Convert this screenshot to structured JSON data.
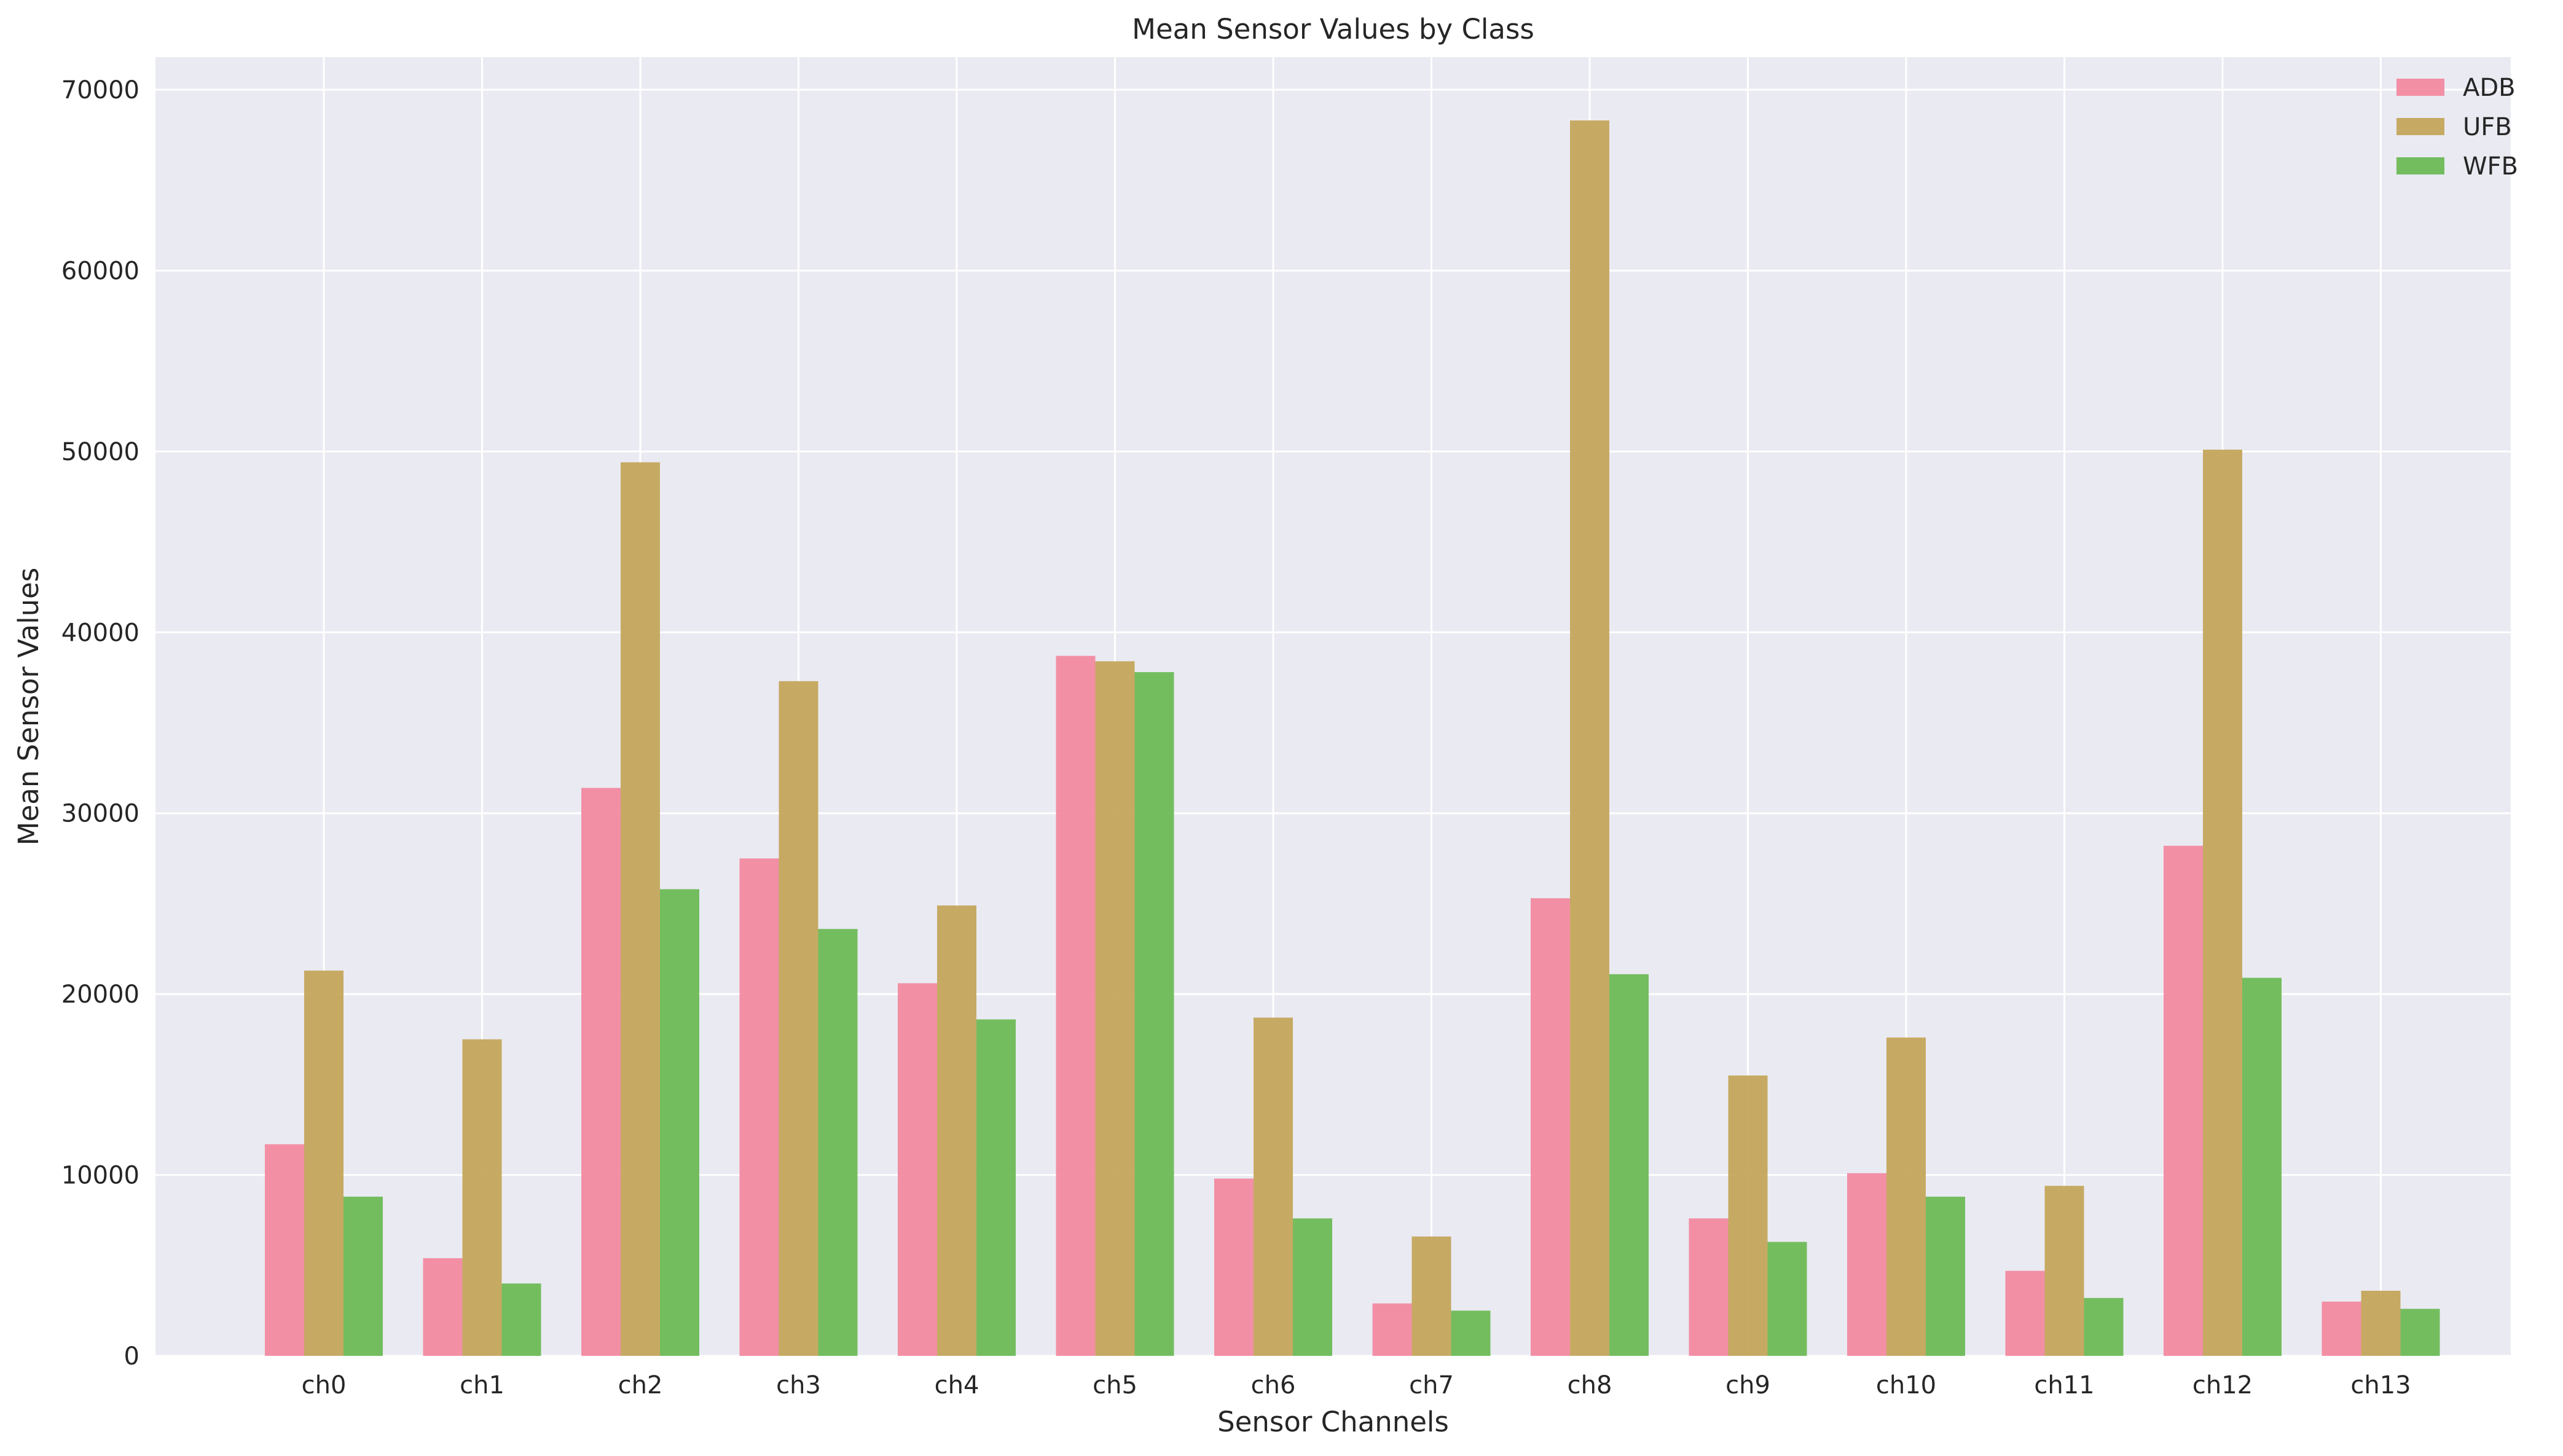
{
  "chart_data": {
    "type": "bar",
    "title": "Mean Sensor Values by Class",
    "xlabel": "Sensor Channels",
    "ylabel": "Mean Sensor Values",
    "categories": [
      "ch0",
      "ch1",
      "ch2",
      "ch3",
      "ch4",
      "ch5",
      "ch6",
      "ch7",
      "ch8",
      "ch9",
      "ch10",
      "ch11",
      "ch12",
      "ch13"
    ],
    "series": [
      {
        "name": "ADB",
        "color": "#f28aa0",
        "values": [
          11700,
          5400,
          31400,
          27500,
          20600,
          38700,
          9800,
          2900,
          25300,
          7600,
          10100,
          4700,
          28200,
          3000
        ]
      },
      {
        "name": "UFB",
        "color": "#c4a75b",
        "values": [
          21300,
          17500,
          49400,
          37300,
          24900,
          38400,
          18700,
          6600,
          68300,
          15500,
          17600,
          9400,
          50100,
          3600
        ]
      },
      {
        "name": "WFB",
        "color": "#6dbb56",
        "values": [
          8800,
          4000,
          25800,
          23600,
          18600,
          37800,
          7600,
          2500,
          21100,
          6300,
          8800,
          3200,
          20900,
          2600
        ]
      }
    ],
    "ylim": [
      0,
      71800
    ],
    "yticks": [
      0,
      10000,
      20000,
      30000,
      40000,
      50000,
      60000,
      70000
    ],
    "grid": true,
    "legend_position": "top-right",
    "plot_background": "#eaeaf2",
    "grid_color": "#ffffff"
  }
}
